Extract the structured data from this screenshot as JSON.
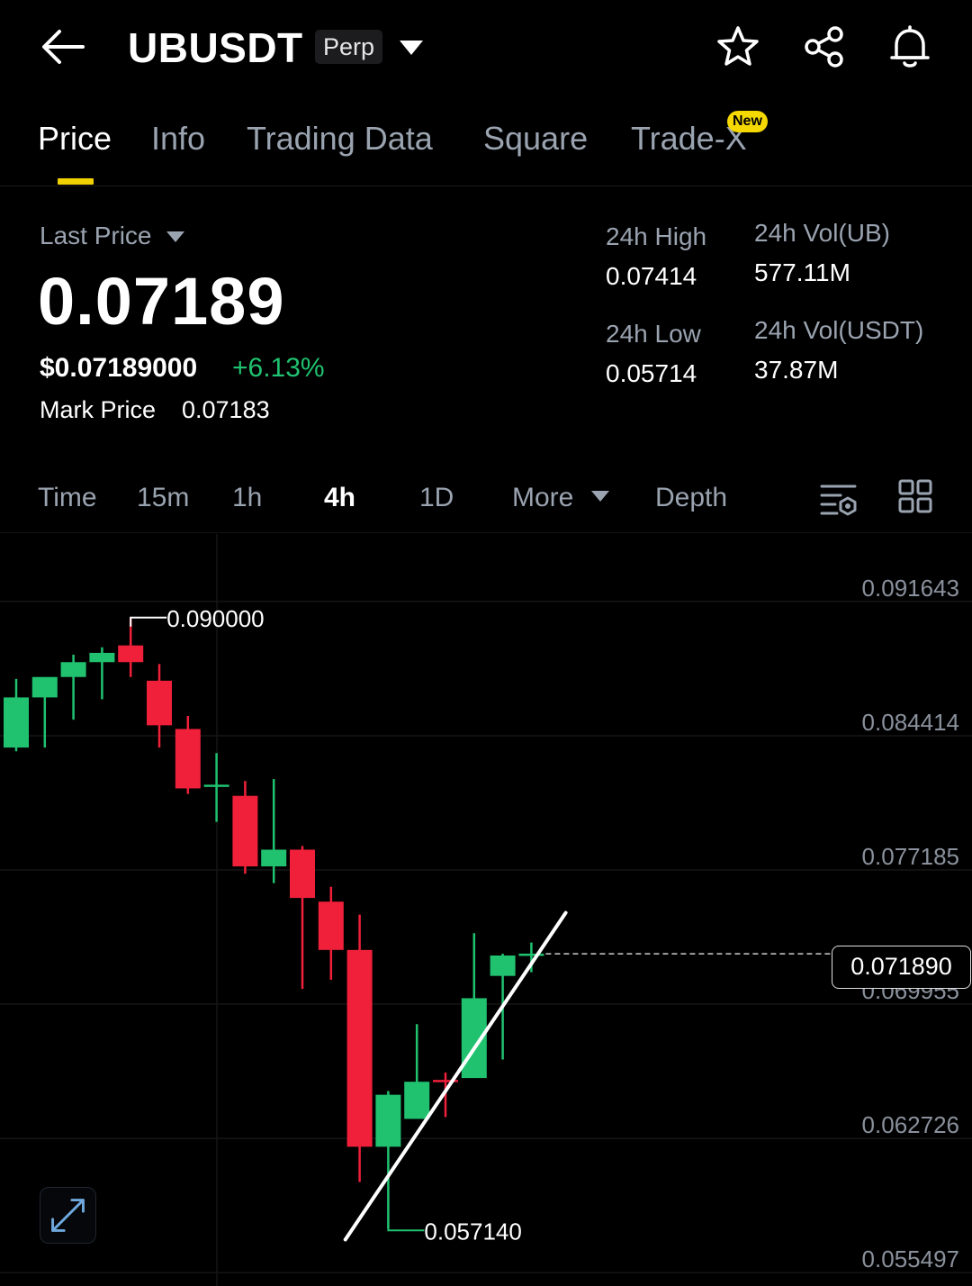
{
  "header": {
    "back_icon": "arrow-left-icon",
    "symbol": "UBUSDT",
    "contract_type": "Perp",
    "dropdown_icon": "caret-down-icon",
    "actions": [
      "star-icon",
      "share-icon",
      "bell-icon"
    ]
  },
  "tabs": {
    "items": [
      {
        "label": "Price",
        "active": true
      },
      {
        "label": "Info",
        "active": false
      },
      {
        "label": "Trading Data",
        "active": false
      },
      {
        "label": "Square",
        "active": false
      },
      {
        "label": "Trade-X",
        "active": false
      }
    ],
    "new_badge": "New",
    "accent_color": "#f0d000"
  },
  "summary": {
    "last_price_label": "Last Price",
    "last_price": "0.07189",
    "usd_price": "$0.07189000",
    "change_pct": "+6.13%",
    "mark_price_label": "Mark Price",
    "mark_price": "0.07183",
    "high_label": "24h High",
    "high": "0.07414",
    "low_label": "24h Low",
    "low": "0.05714",
    "vol_ub_label": "24h Vol(UB)",
    "vol_ub": "577.11M",
    "vol_usdt_label": "24h Vol(USDT)",
    "vol_usdt": "37.87M",
    "up_color": "#20c270",
    "down_color": "#f0203a"
  },
  "timeframes": {
    "items": [
      {
        "label": "Time",
        "active": false
      },
      {
        "label": "15m",
        "active": false
      },
      {
        "label": "1h",
        "active": false
      },
      {
        "label": "4h",
        "active": true
      },
      {
        "label": "1D",
        "active": false
      },
      {
        "label": "More",
        "active": false
      },
      {
        "label": "Depth",
        "active": false
      }
    ],
    "tool_icons": [
      "indicator-settings-icon",
      "layout-grid-icon"
    ]
  },
  "chart_data": {
    "type": "candlestick",
    "interval": "4h",
    "y_ticks": [
      "0.091643",
      "0.084414",
      "0.077185",
      "0.069955",
      "0.062726",
      "0.055497"
    ],
    "ylim": [
      0.054,
      0.0945
    ],
    "current_price_label": "0.071890",
    "current_price": 0.07189,
    "max_marker": {
      "label": "0.090000",
      "value": 0.09
    },
    "min_marker": {
      "label": "0.057140",
      "value": 0.05714
    },
    "candles": [
      {
        "o": 0.083,
        "h": 0.0867,
        "l": 0.0828,
        "c": 0.0857
      },
      {
        "o": 0.0857,
        "h": 0.0866,
        "l": 0.083,
        "c": 0.0868
      },
      {
        "o": 0.0868,
        "h": 0.088,
        "l": 0.0845,
        "c": 0.0876
      },
      {
        "o": 0.0876,
        "h": 0.0884,
        "l": 0.0856,
        "c": 0.0881
      },
      {
        "o": 0.0885,
        "h": 0.09,
        "l": 0.0868,
        "c": 0.0876
      },
      {
        "o": 0.0866,
        "h": 0.0875,
        "l": 0.083,
        "c": 0.0842
      },
      {
        "o": 0.084,
        "h": 0.0847,
        "l": 0.0805,
        "c": 0.0808
      },
      {
        "o": 0.0809,
        "h": 0.0827,
        "l": 0.079,
        "c": 0.081
      },
      {
        "o": 0.0804,
        "h": 0.0812,
        "l": 0.0762,
        "c": 0.0766
      },
      {
        "o": 0.0766,
        "h": 0.0813,
        "l": 0.0757,
        "c": 0.0775
      },
      {
        "o": 0.0775,
        "h": 0.0777,
        "l": 0.07,
        "c": 0.0749
      },
      {
        "o": 0.0747,
        "h": 0.0755,
        "l": 0.0705,
        "c": 0.0721
      },
      {
        "o": 0.0721,
        "h": 0.074,
        "l": 0.0596,
        "c": 0.0615
      },
      {
        "o": 0.0615,
        "h": 0.0645,
        "l": 0.0571,
        "c": 0.0643
      },
      {
        "o": 0.063,
        "h": 0.0681,
        "l": 0.0632,
        "c": 0.065
      },
      {
        "o": 0.0651,
        "h": 0.0655,
        "l": 0.0631,
        "c": 0.065
      },
      {
        "o": 0.0652,
        "h": 0.073,
        "l": 0.0653,
        "c": 0.0695
      },
      {
        "o": 0.0707,
        "h": 0.0719,
        "l": 0.0662,
        "c": 0.0718
      },
      {
        "o": 0.0719,
        "h": 0.0725,
        "l": 0.0709,
        "c": 0.0719
      }
    ],
    "trendline": {
      "from": {
        "candle": 11.5,
        "value": 0.0565
      },
      "to": {
        "candle": 19.2,
        "value": 0.0741
      }
    },
    "fullscreen_icon": "expand-icon"
  }
}
